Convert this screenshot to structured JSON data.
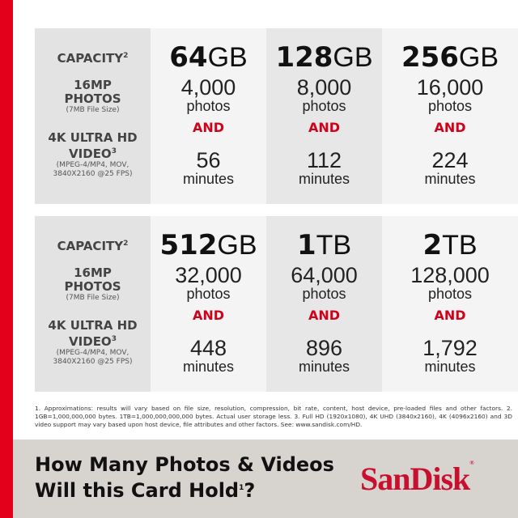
{
  "labels": {
    "capacity": "CAPACITY",
    "capacity_sup": "2",
    "photos_line1": "16MP",
    "photos_line2": "PHOTOS",
    "photos_note": "(7MB File Size)",
    "video_line1": "4K ULTRA HD",
    "video_line2": "VIDEO",
    "video_sup": "3",
    "video_note1": "(MPEG-4/MP4, MOV,",
    "video_note2": "3840X2160 @25 FPS)"
  },
  "and_label": "AND",
  "photos_unit": "photos",
  "minutes_unit": "minutes",
  "cards": [
    {
      "num": "64",
      "unit": "GB",
      "photos": "4,000",
      "minutes": "56"
    },
    {
      "num": "128",
      "unit": "GB",
      "photos": "8,000",
      "minutes": "112"
    },
    {
      "num": "256",
      "unit": "GB",
      "photos": "16,000",
      "minutes": "224"
    },
    {
      "num": "512",
      "unit": "GB",
      "photos": "32,000",
      "minutes": "448"
    },
    {
      "num": "1",
      "unit": "TB",
      "photos": "64,000",
      "minutes": "896"
    },
    {
      "num": "2",
      "unit": "TB",
      "photos": "128,000",
      "minutes": "1,792"
    }
  ],
  "footnote": "1. Approximations: results will vary based on file size, resolution, compression, bit rate, content, host device, pre-loaded files and other factors. 2. 1GB=1,000,000,000 bytes. 1TB=1,000,000,000,000 bytes. Actual user storage less. 3. Full HD (1920x1080), 4K UHD (3840x2160), 4K (4096x2160) and 3D video support may vary based upon host device, file attributes and other factors. See: www.sandisk.com/HD.",
  "title": {
    "line1": "How Many Photos & Videos",
    "line2_a": "Will this Card Hold",
    "line2_sup": "1",
    "line2_b": "?"
  },
  "logo": "SanDisk",
  "colors": {
    "accent": "#e3001b",
    "and": "#d0021b"
  }
}
